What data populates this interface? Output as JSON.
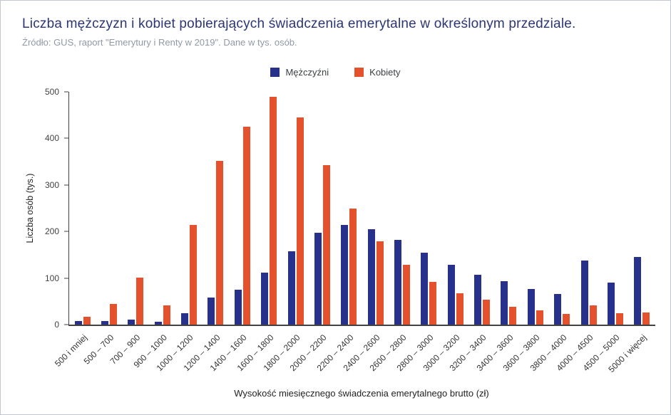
{
  "chart_data": {
    "type": "bar",
    "title": "Liczba mężczyzn i kobiet pobierających świadczenia emerytalne w określonym przedziale.",
    "subtitle": "Źródło: GUS, raport \"Emerytury i Renty w 2019\". Dane w tys. osób.",
    "xlabel": "Wysokość miesięcznego świadczenia emerytalnego brutto (zł)",
    "ylabel": "Liczba osób (tys.)",
    "ylim": [
      0,
      500
    ],
    "yticks": [
      0,
      100,
      200,
      300,
      400,
      500
    ],
    "grid": false,
    "legend_position": "top-center",
    "categories": [
      "500 i mniej",
      "500 – 700",
      "700 – 900",
      "900 – 1000",
      "1000 – 1200",
      "1200 – 1400",
      "1400 – 1600",
      "1600 – 1800",
      "1800 – 2000",
      "2000 – 2200",
      "2200 – 2400",
      "2400 – 2600",
      "2600 – 2800",
      "2800 – 3000",
      "3000 – 3200",
      "3200 – 3400",
      "3400 – 3600",
      "3600 – 3800",
      "3800 – 4000",
      "4000 – 4500",
      "4500 – 5000",
      "5000 i więcej"
    ],
    "series": [
      {
        "name": "Mężczyźni",
        "color": "#27308a",
        "values": [
          8,
          8,
          10,
          6,
          25,
          58,
          75,
          112,
          157,
          197,
          214,
          205,
          182,
          155,
          129,
          107,
          93,
          77,
          66,
          138,
          90,
          145
        ]
      },
      {
        "name": "Kobiety",
        "color": "#e6512d",
        "values": [
          17,
          44,
          101,
          41,
          214,
          351,
          425,
          489,
          445,
          342,
          250,
          179,
          128,
          92,
          68,
          53,
          39,
          30,
          23,
          41,
          24,
          26
        ]
      }
    ],
    "colors": {
      "title": "#2c3677",
      "subtitle": "#9199a4",
      "axis": "#424242",
      "background": "#ffffff",
      "border": "#c3c8d0"
    }
  }
}
